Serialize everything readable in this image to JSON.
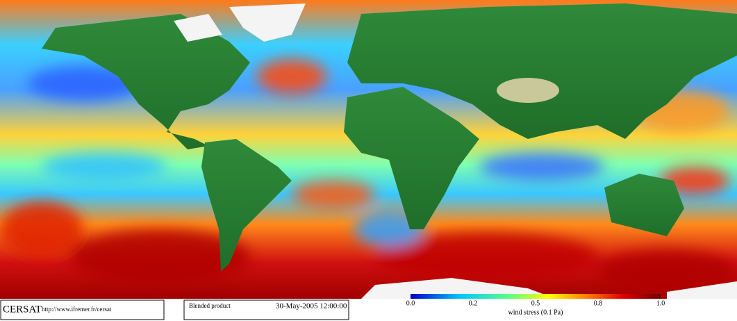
{
  "footer": {
    "logo": "CERSAT",
    "url": "http://www.ifremer.fr/cersat",
    "product": "Blended product",
    "datetime": "30-May-2005 12:00:00"
  },
  "colorbar": {
    "tick_labels": [
      "0.0",
      "0.2",
      "0.5",
      "0.8",
      "1.0"
    ],
    "label": "wind stress (0.1 Pa)"
  }
}
